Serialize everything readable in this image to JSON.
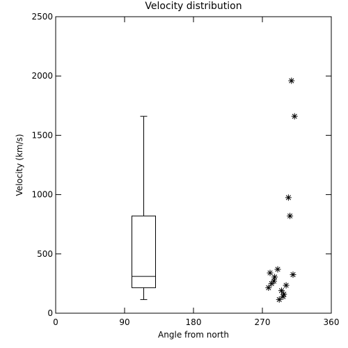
{
  "chart_data": {
    "type": "box_scatter",
    "title": "Velocity distribution",
    "xlabel": "Angle from north",
    "ylabel": "Velocity (km/s)",
    "xlim": [
      0,
      360
    ],
    "ylim": [
      0,
      2500
    ],
    "xticks": [
      0,
      90,
      180,
      270,
      360
    ],
    "yticks": [
      0,
      500,
      1000,
      1500,
      2000,
      2500
    ],
    "color": "#000000",
    "box": {
      "x": 115,
      "whislo": 115,
      "q1": 215,
      "med": 310,
      "q3": 820,
      "whishi": 1660
    },
    "x": [
      308,
      312,
      304,
      306,
      280,
      310,
      290,
      285,
      286,
      278,
      282,
      301,
      295,
      298,
      292,
      297
    ],
    "values": [
      1960,
      1660,
      975,
      820,
      340,
      325,
      370,
      270,
      305,
      215,
      250,
      235,
      190,
      160,
      115,
      140
    ]
  }
}
